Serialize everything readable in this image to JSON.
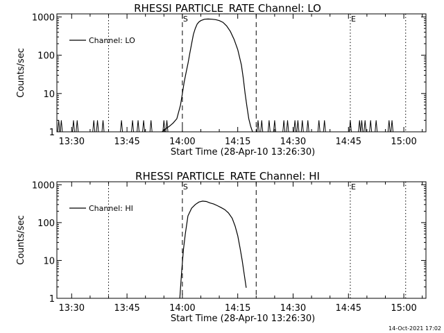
{
  "footer": {
    "timestamp": "14-Oct-2021 17:02"
  },
  "chart_data": [
    {
      "type": "line",
      "title": "RHESSI PARTICLE_RATE Channel: LO",
      "xlabel": "Start Time (28-Apr-10 13:26:30)",
      "ylabel": "Counts/sec",
      "yscale": "log",
      "xlim_min": [
        0,
        100
      ],
      "ylim": [
        1,
        1200
      ],
      "x_ticks": [
        {
          "v": 4,
          "l": "13:30"
        },
        {
          "v": 19,
          "l": "13:45"
        },
        {
          "v": 34,
          "l": "14:00"
        },
        {
          "v": 49,
          "l": "14:15"
        },
        {
          "v": 64,
          "l": "14:30"
        },
        {
          "v": 79,
          "l": "14:45"
        },
        {
          "v": 94,
          "l": "15:00"
        }
      ],
      "y_ticks": [
        {
          "v": 1,
          "l": "1"
        },
        {
          "v": 10,
          "l": "10"
        },
        {
          "v": 100,
          "l": "100"
        },
        {
          "v": 1000,
          "l": "1000"
        }
      ],
      "legend": {
        "label": "Channel: LO",
        "position": "top-left"
      },
      "markers": [
        {
          "x": 34,
          "style": "dashed",
          "label": "S"
        },
        {
          "x": 54,
          "style": "dashed",
          "label": ""
        },
        {
          "x": 14,
          "style": "dotted",
          "label": ""
        },
        {
          "x": 79.5,
          "style": "dotted",
          "label": "E"
        },
        {
          "x": 94.5,
          "style": "dotted",
          "label": ""
        }
      ],
      "noise_spikes": [
        0.5,
        1.2,
        4.5,
        5.5,
        10,
        11,
        12.5,
        17.5,
        20.5,
        22,
        23.5,
        25.5,
        29,
        29.8,
        54.5,
        55.5,
        57.5,
        59,
        61.5,
        62.5,
        64.5,
        65.3,
        66.5,
        68,
        71,
        72.5,
        79.5,
        82,
        82.6,
        83.5,
        85,
        86.5,
        90,
        90.8
      ],
      "series": [
        {
          "name": "Channel: LO",
          "x": [
            28.5,
            29.5,
            30.5,
            31.5,
            32.5,
            33.5,
            34,
            34.5,
            35,
            35.5,
            36,
            36.5,
            37,
            37.5,
            38,
            38.5,
            39,
            40,
            41,
            42,
            43,
            44,
            45,
            46,
            47,
            48,
            49,
            50,
            50.5,
            51,
            51.5,
            52,
            52.5,
            53
          ],
          "y": [
            1,
            1.2,
            1.4,
            1.7,
            2.2,
            5,
            10,
            20,
            35,
            60,
            110,
            200,
            350,
            500,
            650,
            740,
            800,
            870,
            880,
            870,
            850,
            800,
            720,
            580,
            420,
            260,
            140,
            55,
            25,
            10,
            4.5,
            2.2,
            1.4,
            1
          ]
        }
      ]
    },
    {
      "type": "line",
      "title": "RHESSI PARTICLE_RATE Channel: HI",
      "xlabel": "Start Time (28-Apr-10 13:26:30)",
      "ylabel": "Counts/sec",
      "yscale": "log",
      "xlim_min": [
        0,
        100
      ],
      "ylim": [
        1,
        1200
      ],
      "x_ticks": [
        {
          "v": 4,
          "l": "13:30"
        },
        {
          "v": 19,
          "l": "13:45"
        },
        {
          "v": 34,
          "l": "14:00"
        },
        {
          "v": 49,
          "l": "14:15"
        },
        {
          "v": 64,
          "l": "14:30"
        },
        {
          "v": 79,
          "l": "14:45"
        },
        {
          "v": 94,
          "l": "15:00"
        }
      ],
      "y_ticks": [
        {
          "v": 1,
          "l": "1"
        },
        {
          "v": 10,
          "l": "10"
        },
        {
          "v": 100,
          "l": "100"
        },
        {
          "v": 1000,
          "l": "1000"
        }
      ],
      "legend": {
        "label": "Channel: HI",
        "position": "top-left"
      },
      "markers": [
        {
          "x": 34,
          "style": "dashed",
          "label": "S"
        },
        {
          "x": 54,
          "style": "dashed",
          "label": ""
        },
        {
          "x": 14,
          "style": "dotted",
          "label": ""
        },
        {
          "x": 79.5,
          "style": "dotted",
          "label": "E"
        },
        {
          "x": 94.5,
          "style": "dotted",
          "label": ""
        }
      ],
      "noise_spikes": [],
      "series": [
        {
          "name": "Channel: HI",
          "x": [
            33.3,
            33.8,
            34.3,
            34.8,
            35.5,
            36.5,
            37.5,
            38.5,
            39.5,
            40.5,
            41.5,
            42.5,
            43.5,
            44.5,
            45.5,
            46.5,
            47.5,
            48.3,
            49,
            49.6,
            50.2,
            50.8,
            51.3
          ],
          "y": [
            1,
            5,
            20,
            50,
            150,
            240,
            300,
            350,
            370,
            360,
            330,
            310,
            280,
            250,
            220,
            180,
            130,
            80,
            45,
            22,
            10,
            4,
            1.9
          ]
        }
      ]
    }
  ]
}
